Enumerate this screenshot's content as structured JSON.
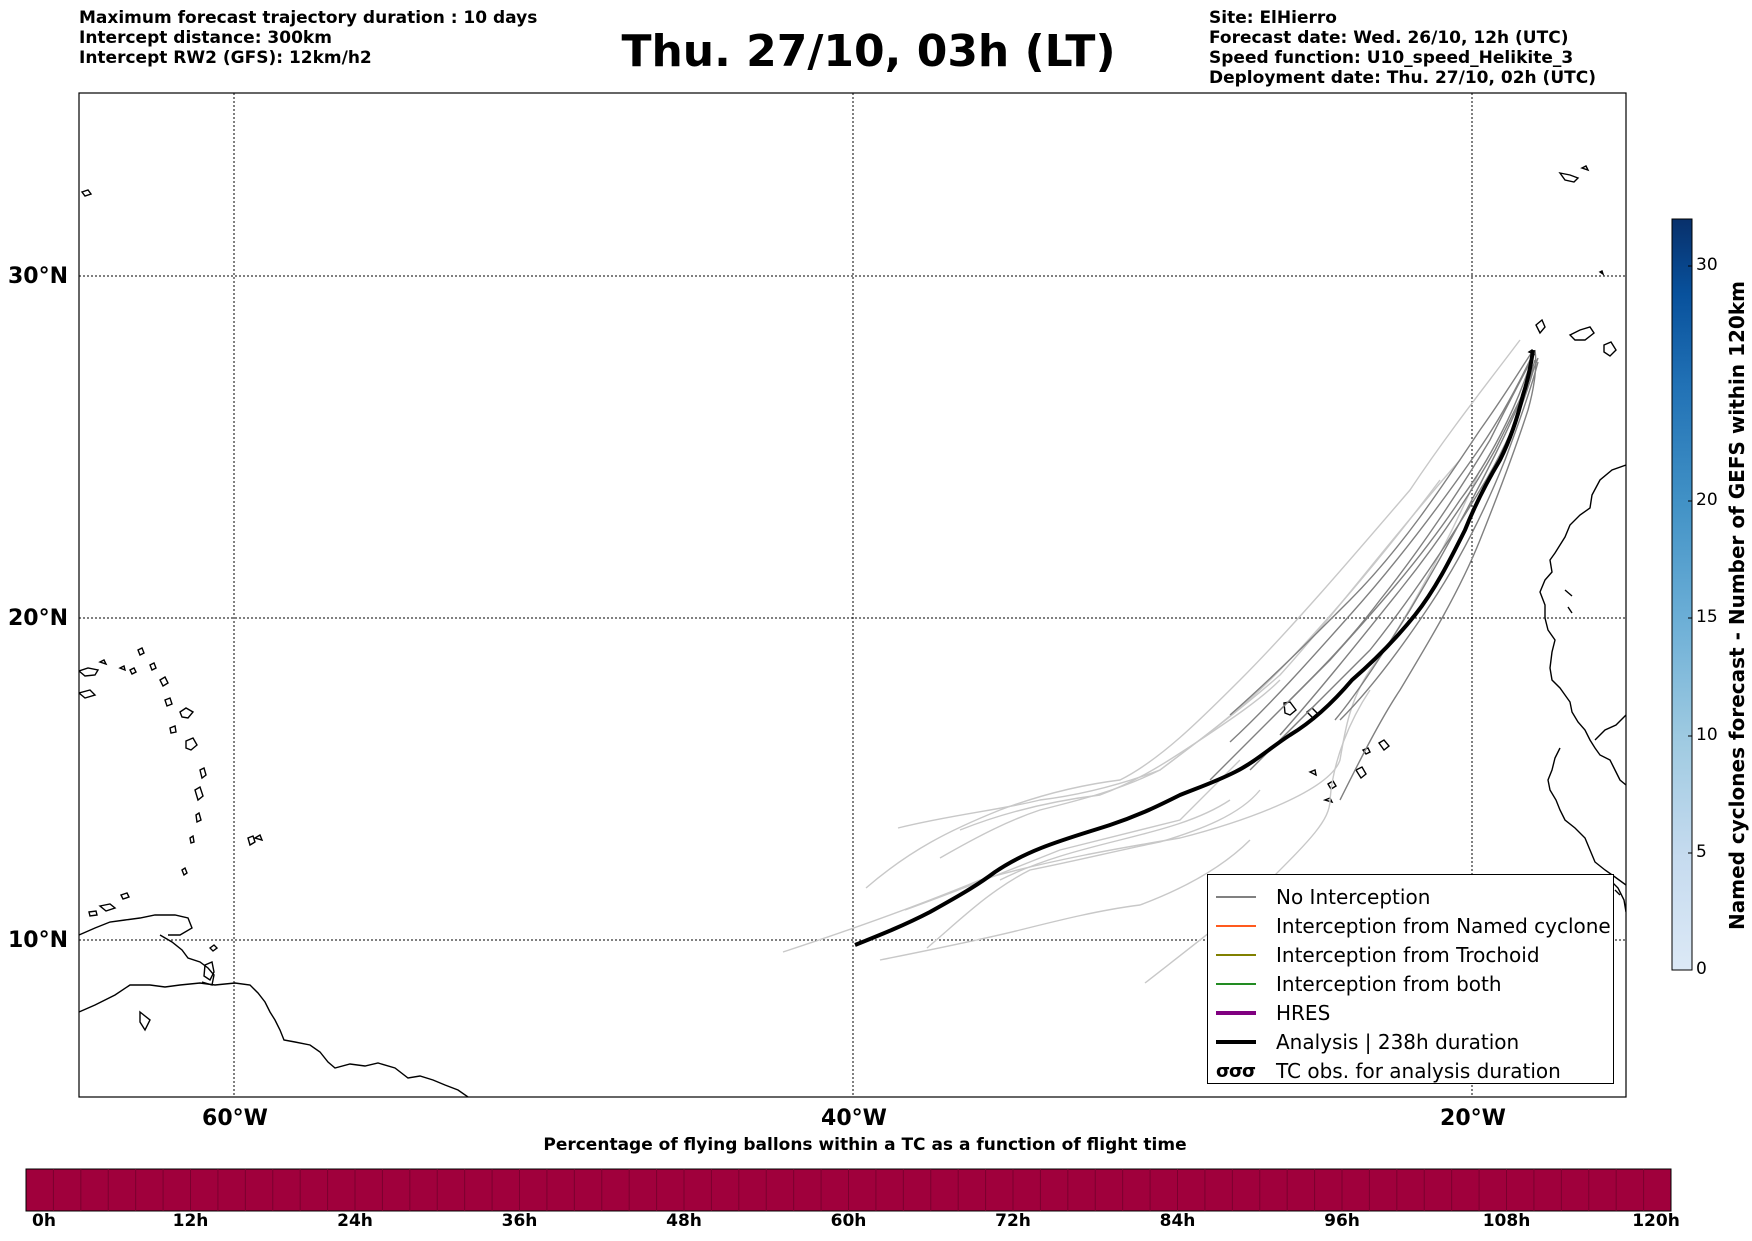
{
  "header_left": {
    "line1": "Maximum forecast trajectory duration : 10 days",
    "line2": "Intercept distance: 300km",
    "line3": "Intercept RW2 (GFS):  12km/h2"
  },
  "title": "Thu. 27/10, 03h (LT)",
  "header_right": {
    "site": "Site: ElHierro",
    "forecast_date": "Forecast date: Wed. 26/10, 12h (UTC)",
    "speed_function": "Speed function: U10_speed_Helikite_3",
    "deployment_date": "Deployment date: Thu. 27/10, 02h (UTC)"
  },
  "map": {
    "lon_range": [
      -65,
      -15
    ],
    "lat_range": [
      5,
      35
    ],
    "lat_labels": [
      "30°N",
      "20°N",
      "10°N"
    ],
    "lon_labels": [
      "60°W",
      "40°W",
      "20°W"
    ],
    "gridlines": true
  },
  "legend": {
    "items": [
      {
        "label": "No Interception",
        "color": "#808080"
      },
      {
        "label": "Interception from Named cyclone",
        "color": "#ff5a1e"
      },
      {
        "label": "Interception from Trochoid",
        "color": "#808000"
      },
      {
        "label": "Interception from both",
        "color": "#228b22"
      },
      {
        "label": "HRES",
        "color": "#800080"
      },
      {
        "label": "Analysis | 238h duration",
        "color": "#000000"
      },
      {
        "label": "TC obs. for analysis duration",
        "color": "#000000"
      }
    ]
  },
  "colorbar_right": {
    "label": "Named cyclones forecast - Number of GEFS within 120km",
    "ticks": [
      "0",
      "5",
      "10",
      "15",
      "20",
      "30"
    ],
    "range": [
      0,
      32
    ]
  },
  "colorbar_bottom": {
    "title": "Percentage of flying ballons within a TC as a function of flight time",
    "ticks": [
      "0h",
      "12h",
      "24h",
      "36h",
      "48h",
      "60h",
      "72h",
      "84h",
      "96h",
      "108h",
      "120h"
    ],
    "color": "#a0003c"
  }
}
